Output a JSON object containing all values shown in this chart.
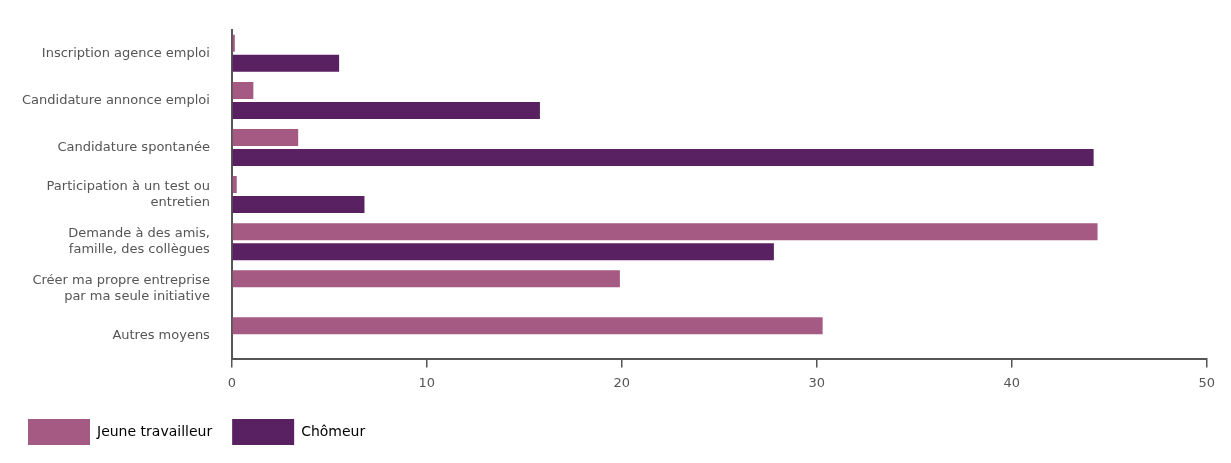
{
  "chart_data": {
    "type": "bar",
    "orientation": "horizontal",
    "categories": [
      "Inscription agence emploi",
      "Candidature annonce emploi",
      "Candidature spontanée",
      "Participation à un test ou entretien",
      "Demande à des amis, famille, des collègues",
      "Créer ma propre entreprise par ma seule initiative",
      "Autres moyens"
    ],
    "series": [
      {
        "name": "Jeune travailleur",
        "color": "#a45a82",
        "values": [
          0.15,
          1.1,
          3.4,
          0.25,
          44.4,
          19.9,
          30.3
        ]
      },
      {
        "name": "Chômeur",
        "color": "#5a2162",
        "values": [
          5.5,
          15.8,
          44.2,
          6.8,
          27.8,
          null,
          null
        ]
      }
    ],
    "xlim": [
      0,
      50
    ],
    "xticks": [
      0,
      10,
      20,
      30,
      40,
      50
    ],
    "grid": false,
    "legend": "bottom"
  }
}
